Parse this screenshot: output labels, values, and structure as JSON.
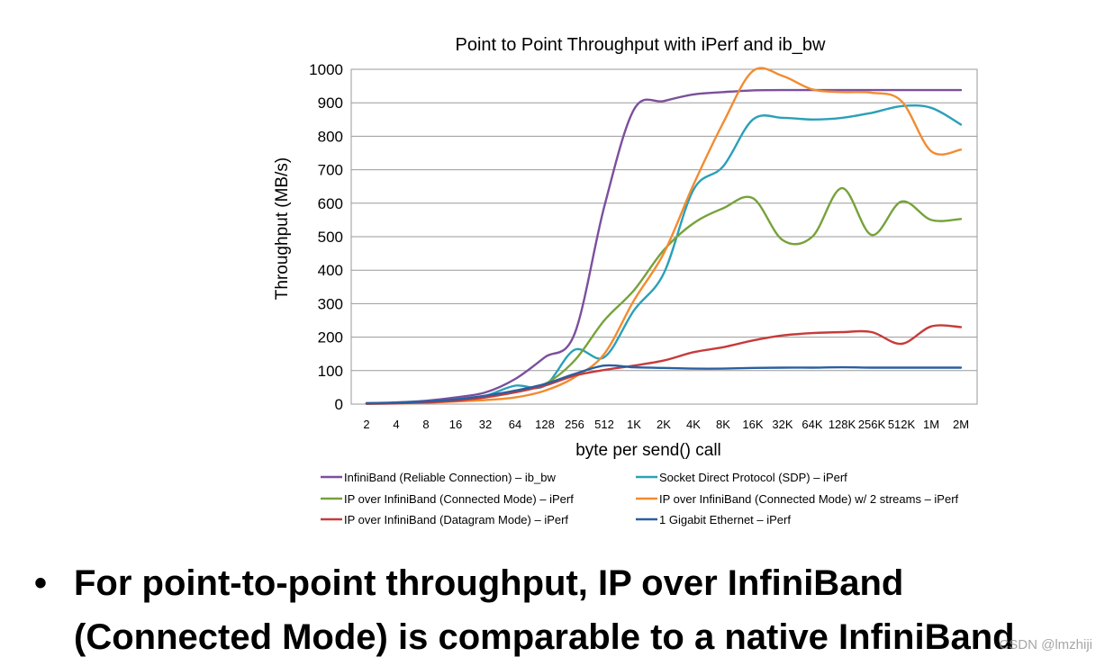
{
  "chart_data": {
    "type": "line",
    "title": "Point to Point Throughput with iPerf and ib_bw",
    "xlabel": "byte per send() call",
    "ylabel": "Throughput (MB/s)",
    "ylim": [
      0,
      1000
    ],
    "yticks": [
      "0",
      "100",
      "200",
      "300",
      "400",
      "500",
      "600",
      "700",
      "800",
      "900",
      "1000"
    ],
    "categories": [
      "2",
      "4",
      "8",
      "16",
      "32",
      "64",
      "128",
      "256",
      "512",
      "1K",
      "2K",
      "4K",
      "8K",
      "16K",
      "32K",
      "64K",
      "128K",
      "256K",
      "512K",
      "1M",
      "2M"
    ],
    "grid": "horizontal",
    "legend_position": "bottom",
    "series": [
      {
        "name": "InfiniBand (Reliable Connection) – ib_bw",
        "color": "#7b4f9d",
        "values": [
          3,
          5,
          10,
          20,
          35,
          75,
          140,
          210,
          590,
          880,
          905,
          925,
          932,
          937,
          938,
          938,
          938,
          938,
          938,
          938,
          938
        ]
      },
      {
        "name": "Socket Direct Protocol (SDP) – iPerf",
        "color": "#2aa0b8",
        "values": [
          2,
          4,
          8,
          14,
          25,
          55,
          55,
          162,
          140,
          280,
          390,
          640,
          710,
          850,
          855,
          850,
          855,
          870,
          890,
          885,
          835
        ]
      },
      {
        "name": "IP over InfiniBand (Connected Mode) – iPerf",
        "color": "#76a23b",
        "values": [
          2,
          4,
          7,
          12,
          22,
          40,
          60,
          130,
          250,
          340,
          460,
          540,
          585,
          615,
          490,
          500,
          645,
          505,
          605,
          550,
          553
        ]
      },
      {
        "name": "IP over InfiniBand (Connected Mode) w/ 2 streams – iPerf",
        "color": "#f28b30",
        "values": [
          1,
          2,
          4,
          8,
          12,
          20,
          40,
          80,
          150,
          310,
          450,
          655,
          840,
          995,
          980,
          940,
          932,
          930,
          905,
          755,
          760
        ]
      },
      {
        "name": "IP over InfiniBand (Datagram Mode) – iPerf",
        "color": "#c83a3a",
        "values": [
          1,
          2,
          5,
          10,
          20,
          35,
          55,
          85,
          102,
          115,
          130,
          155,
          170,
          190,
          205,
          212,
          215,
          215,
          180,
          232,
          230
        ]
      },
      {
        "name": "1 Gigabit Ethernet – iPerf",
        "color": "#2a5fa0",
        "values": [
          2,
          4,
          8,
          14,
          25,
          40,
          60,
          90,
          115,
          110,
          108,
          106,
          106,
          108,
          109,
          109,
          110,
          109,
          109,
          109,
          109
        ]
      }
    ]
  },
  "bullet": {
    "lines": [
      "For point-to-point throughput, IP over InfiniBand",
      "(Connected Mode) is comparable to a native InfiniBand"
    ]
  },
  "watermark": "CSDN @lmzhiji"
}
